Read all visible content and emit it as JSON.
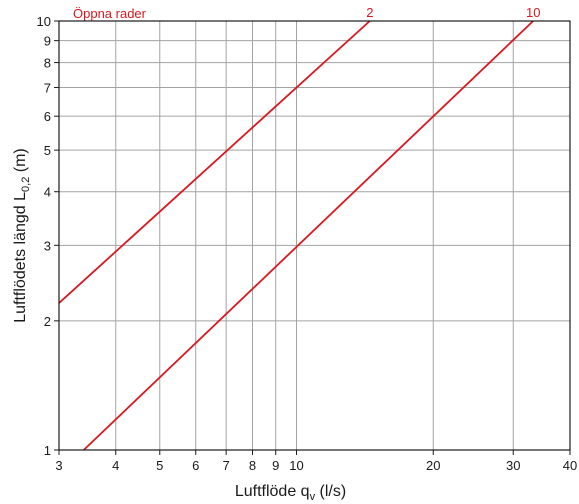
{
  "chart_data": {
    "type": "line",
    "xscale": "log",
    "yscale": "log",
    "xlim": [
      3,
      40
    ],
    "ylim": [
      1,
      10
    ],
    "xticks": [
      3,
      4,
      5,
      6,
      7,
      8,
      9,
      10,
      20,
      30,
      40
    ],
    "yticks": [
      1,
      2,
      3,
      4,
      5,
      6,
      7,
      8,
      9,
      10
    ],
    "grid": true,
    "xlabel": {
      "main": "Luftflöde q",
      "sub": "v",
      "unit": " (l/s)"
    },
    "ylabel": {
      "main": "Luftflödets längd L",
      "sub": "0,2",
      "unit": " (m)"
    },
    "annotation": "Öppna rader",
    "line_color": "#d7191f",
    "series": [
      {
        "name": "2",
        "points": [
          [
            3,
            2.2
          ],
          [
            14.5,
            10
          ]
        ]
      },
      {
        "name": "10",
        "points": [
          [
            3.4,
            1
          ],
          [
            33.2,
            10
          ]
        ]
      }
    ]
  }
}
